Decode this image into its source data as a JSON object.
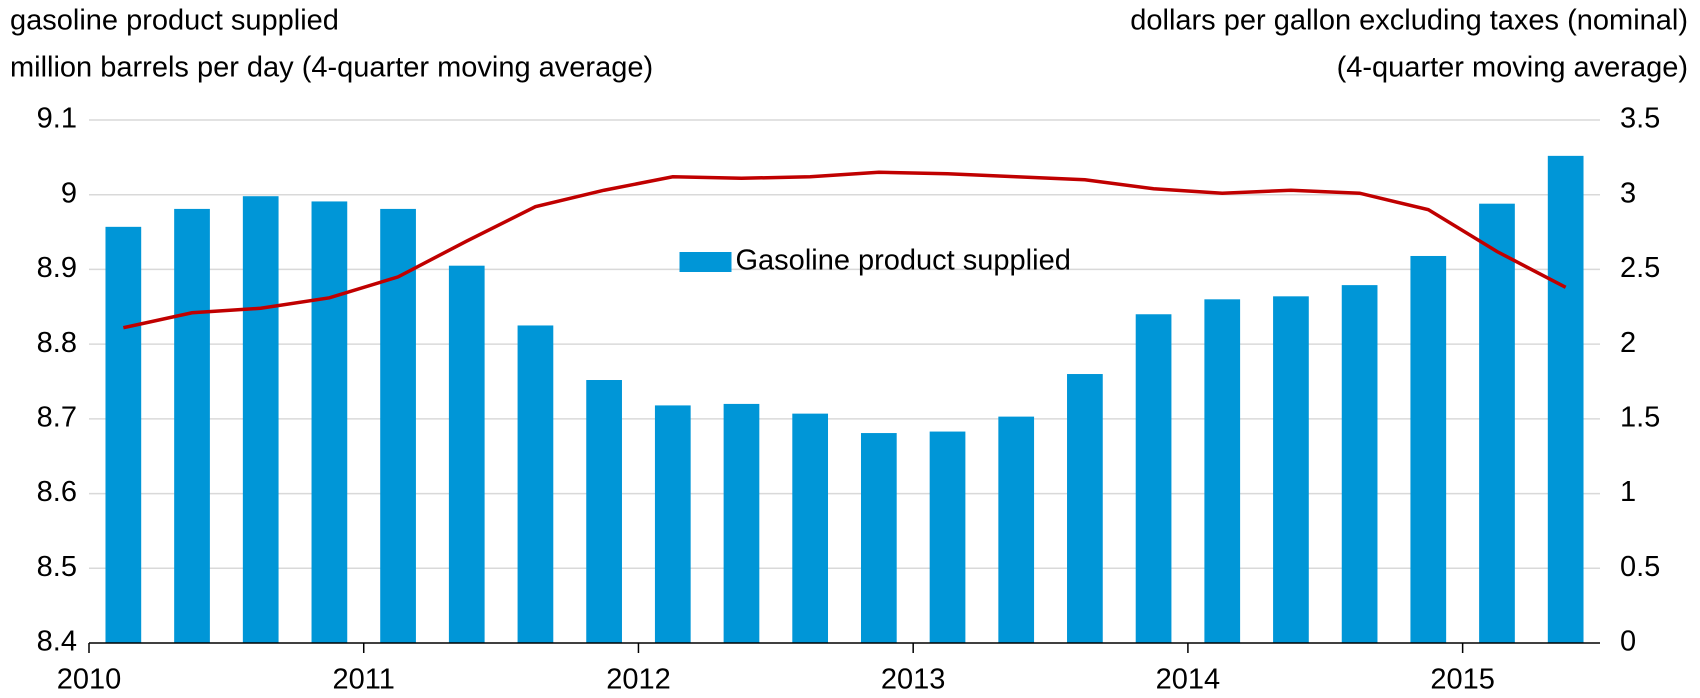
{
  "chart_data": {
    "type": "bar_line",
    "y_label": [
      "gasoline product supplied",
      "million barrels per day (4-quarter moving average)"
    ],
    "y2_label": [
      "dollars per gallon excluding taxes (nominal)",
      "(4-quarter moving average)"
    ],
    "categories": [
      "2010",
      null,
      null,
      null,
      "2011",
      null,
      null,
      null,
      "2012",
      null,
      null,
      null,
      "2013",
      null,
      null,
      null,
      "2014",
      null,
      null,
      null,
      "2015",
      null
    ],
    "series": [
      {
        "name": "Gasoline product supplied",
        "color": "#0096d7",
        "kind": "bar",
        "values": [
          8.957,
          8.981,
          8.998,
          8.991,
          8.981,
          8.905,
          8.825,
          8.752,
          8.718,
          8.72,
          8.707,
          8.681,
          8.683,
          8.703,
          8.76,
          8.84,
          8.86,
          8.864,
          8.879,
          8.918,
          8.988,
          9.052
        ]
      },
      {
        "color": "#c00000",
        "kind": "line",
        "axis": "y2",
        "values": [
          2.11,
          2.21,
          2.24,
          2.31,
          2.45,
          2.69,
          2.92,
          3.03,
          3.12,
          3.11,
          3.12,
          3.15,
          3.14,
          3.12,
          3.1,
          3.04,
          3.01,
          3.03,
          3.01,
          2.9,
          2.62,
          2.38
        ]
      }
    ],
    "ylim": [
      8.4,
      9.1
    ],
    "yticks": [
      8.4,
      8.5,
      8.6,
      8.7,
      8.8,
      8.9,
      9,
      9.1
    ],
    "y2lim": [
      0,
      3.5
    ],
    "y2ticks": [
      0,
      0.5,
      1,
      1.5,
      2,
      2.5,
      3,
      3.5
    ],
    "grid": true,
    "legend": "center"
  }
}
